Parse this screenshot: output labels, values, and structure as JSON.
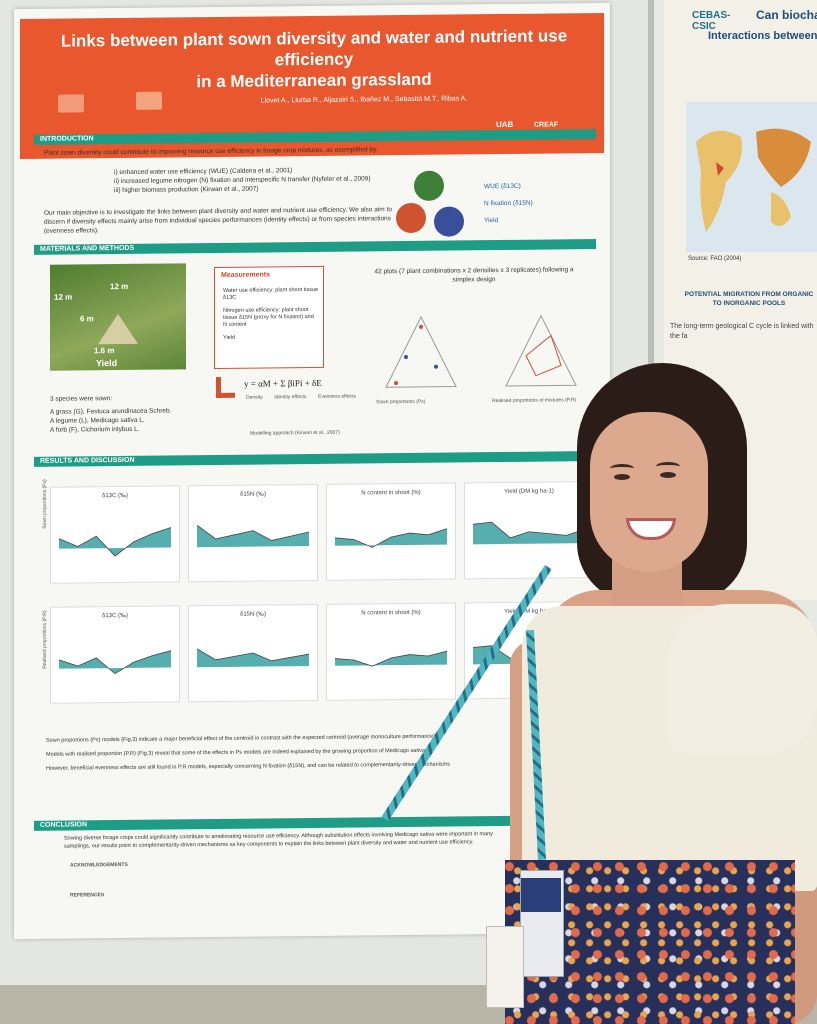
{
  "poster": {
    "title_line1": "Links between plant sown diversity and water and nutrient use efficiency",
    "title_line2": "in a Mediterranean grassland",
    "authors": "Llovet A., Liurba R., Aljazairi S., Ibañez M., Sebastià M.T., Ribas A.",
    "logo_right1": "UAB",
    "logo_right2": "CREAF",
    "sections": {
      "intro": "INTRODUCTION",
      "methods": "MATERIALS AND METHODS",
      "results": "RESULTS AND DISCUSSION",
      "conclusion": "CONCLUSION"
    },
    "intro_text": "Plant sown diversity could contribute to improving resource use efficiency in forage crop mixtures, as exemplified by:",
    "intro_items": [
      "i) enhanced water use efficiency (WUE) (Caldeira et al., 2001)",
      "ii) increased legume nitrogen (N) fixation and interspecific N transfer (Nyfeler et al., 2009)",
      "iii) higher biomass production (Kirwan et al., 2007)"
    ],
    "objective": "Our main objective is to investigate the links between plant diversity and water and nutrient use efficiency. We also aim to discern if diversity effects mainly arise from individual species performances (identity effects) or from species interactions (evenness effects).",
    "legend_right": [
      "WUE (δ13C)",
      "N fixation (δ15N)",
      "Yield"
    ],
    "photo_labels": [
      "12 m",
      "12 m",
      "6 m",
      "1.6 m",
      "Yield"
    ],
    "measurements_title": "Measurements",
    "measurements": [
      "Water use efficiency: plant shoot tissue δ13C",
      "Nitrogen use efficiency: plant shoot tissue δ15N (proxy for N fixation) and N content",
      "Yield"
    ],
    "plots_text": "42 plots (7 plant combinations x 2 densities x 3 replicates) following a simplex design",
    "species_intro": "3 species were sown:",
    "species": [
      "A grass (G), Festuca arundinacea Schreb.",
      "A legume (L), Medicago sativa L.",
      "A forb (F), Cichorium intybus L."
    ],
    "equation": "y = αM + Σ βiPi + δE",
    "equation_parts": [
      "Density",
      "Identity effects",
      "Evenness effects"
    ],
    "modelling": "Modelling approach (Kirwan et al., 2007)",
    "ternary_labels": [
      "Sown proportions (Ps)",
      "Realised proportions of mixtures (P.R)"
    ],
    "chart_row_labels": [
      "Sown proportions (Ps)",
      "Realised proportions (P.R)"
    ],
    "chart_titles": [
      "δ13C (‰)",
      "δ15N (‰)",
      "N content in shoot (%)",
      "Yield (DM kg ha-1)"
    ],
    "results_bullets": [
      "Sown proportions (Ps) models (Fig.3) indicate a major beneficial effect of the centroid in contrast with the expected centroid (average monoculture performance)",
      "Models with realised proportion (P.R) (Fig.3) reveal that some of the effects in Ps models are indeed explained by the growing proportion of Medicago sativa",
      "However, beneficial evenness effects are still found in P.R models, especially concerning N fixation (δ15N), and can be related to complementarity-driven mechanisms"
    ],
    "conclusion_text": "Sowing diverse forage crops could significantly contribute to ameliorating resource use efficiency. Although substitution effects involving Medicago sativa were important in many samplings, our results point to complementarity-driven mechanisms as key components to explain the links between plant diversity and water and nutrient use efficiency.",
    "ack_title": "ACKNOWLEDGEMENTS",
    "ref_title": "REFERENCES"
  },
  "right_poster": {
    "institution": "CEBAS-CSIC",
    "title_partial": "Can biocha",
    "subtitle_partial": "Interactions between",
    "map_source": "Source: FAO (2004)",
    "section_partial": "POTENTIAL MIGRATION FROM ORGANIC TO INORGANIC POOLS",
    "text_partial": "The long-term geological C cycle is linked with the fa"
  },
  "chart_data": [
    {
      "type": "line",
      "title": "δ13C (‰)",
      "row": "Ps",
      "series": [
        {
          "name": "",
          "values": [
            0.3,
            -0.1,
            0.4,
            -0.6,
            0.1,
            0.5,
            0.8
          ]
        }
      ]
    },
    {
      "type": "line",
      "title": "δ15N (‰)",
      "row": "Ps",
      "series": [
        {
          "name": "",
          "values": [
            0.9,
            0.2,
            0.4,
            0.6,
            0.1,
            0.3,
            0.5
          ]
        }
      ]
    },
    {
      "type": "line",
      "title": "N content in shoot (%)",
      "row": "Ps",
      "series": [
        {
          "name": "",
          "values": [
            0.2,
            0.1,
            -0.3,
            0.2,
            0.4,
            0.3,
            0.6
          ]
        }
      ]
    },
    {
      "type": "line",
      "title": "Yield (DM kg ha-1)",
      "row": "Ps",
      "series": [
        {
          "name": "",
          "values": [
            0.8,
            0.9,
            0.1,
            0.4,
            0.3,
            0.2,
            0.5
          ]
        }
      ]
    }
  ],
  "colors": {
    "poster_accent": "#e8572d",
    "section_bar": "#1e9c86",
    "positive": "#3aa0a0",
    "negative": "#d94a3a"
  }
}
